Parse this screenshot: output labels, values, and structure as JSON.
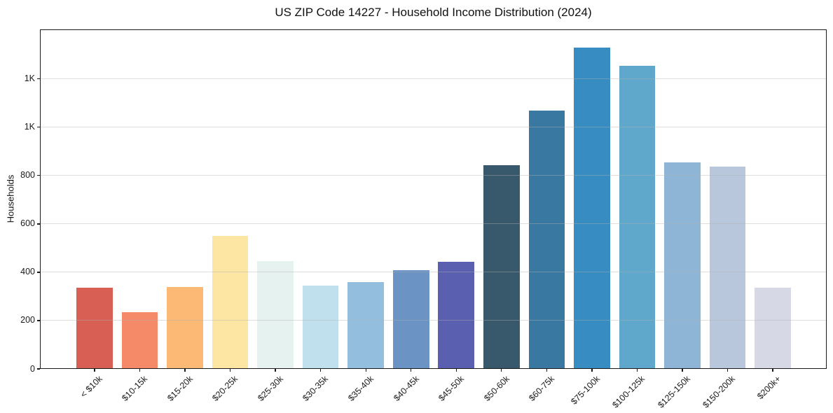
{
  "title": "US ZIP Code 14227 - Household Income Distribution (2024)",
  "chart_data": {
    "type": "bar",
    "title": "US ZIP Code 14227 - Household Income Distribution (2024)",
    "xlabel": "",
    "ylabel": "Households",
    "categories": [
      "< $10k",
      "$10-15k",
      "$15-20k",
      "$20-25k",
      "$25-30k",
      "$30-35k",
      "$35-40k",
      "$40-45k",
      "$45-50k",
      "$50-60k",
      "$60-75k",
      "$75-100k",
      "$100-125k",
      "$125-150k",
      "$150-200k",
      "$200k+"
    ],
    "values": [
      335,
      235,
      340,
      550,
      445,
      345,
      360,
      408,
      442,
      843,
      1070,
      1330,
      1253,
      855,
      838,
      337
    ],
    "bar_colors": [
      "#d85f53",
      "#f48a68",
      "#fcb975",
      "#fde5a4",
      "#e6f2f0",
      "#bfe0ec",
      "#93bedd",
      "#6b93c4",
      "#5a5fb0",
      "#38596b",
      "#3979a1",
      "#378cc1",
      "#60a7cc",
      "#8fb5d6",
      "#b8c7db",
      "#d7d8e5"
    ],
    "ylim": [
      0,
      1405
    ],
    "yticks": [
      {
        "value": 0,
        "label": "0"
      },
      {
        "value": 200,
        "label": "200"
      },
      {
        "value": 400,
        "label": "400"
      },
      {
        "value": 600,
        "label": "600"
      },
      {
        "value": 800,
        "label": "800"
      },
      {
        "value": 1000,
        "label": "1K"
      },
      {
        "value": 1200,
        "label": "1K"
      }
    ],
    "grid": "horizontal",
    "grid_above_bars": true,
    "legend": "none",
    "x_tick_rotation_deg": 45,
    "bar_width_fraction": 0.8
  },
  "colors": {
    "background": "#ffffff",
    "spine": "#1a1a1a",
    "grid": "#b0b0b0",
    "text": "#1a1a1a"
  }
}
